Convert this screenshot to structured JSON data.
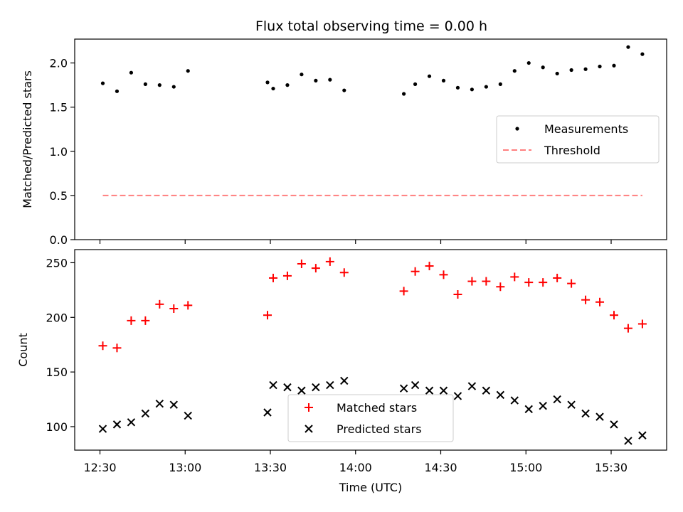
{
  "title": "Flux total observing time = 0.00 h",
  "colors": {
    "matched": "#ff0000",
    "predicted": "#000000",
    "measurement": "#000000",
    "threshold": "#ff7f7f"
  },
  "chart_data": [
    {
      "type": "scatter",
      "ylabel": "Matched/Predicted stars",
      "ylim": [
        0,
        2.27
      ],
      "yticks": [
        "0.0",
        "0.5",
        "1.0",
        "1.5",
        "2.0"
      ],
      "grid": false,
      "legend": "right",
      "series": [
        {
          "name": "Measurements",
          "x": [
            "12:31",
            "12:36",
            "12:41",
            "12:46",
            "12:51",
            "12:56",
            "13:01",
            "13:29",
            "13:31",
            "13:36",
            "13:41",
            "13:46",
            "13:51",
            "13:56",
            "14:17",
            "14:21",
            "14:26",
            "14:31",
            "14:36",
            "14:41",
            "14:46",
            "14:51",
            "14:56",
            "15:01",
            "15:06",
            "15:11",
            "15:16",
            "15:21",
            "15:26",
            "15:31",
            "15:36",
            "15:41"
          ],
          "y": [
            1.77,
            1.68,
            1.89,
            1.76,
            1.75,
            1.73,
            1.91,
            1.78,
            1.71,
            1.75,
            1.87,
            1.8,
            1.81,
            1.69,
            1.65,
            1.76,
            1.85,
            1.8,
            1.72,
            1.7,
            1.73,
            1.76,
            1.91,
            2.0,
            1.95,
            1.88,
            1.92,
            1.93,
            1.96,
            1.97,
            2.18,
            2.1
          ]
        },
        {
          "name": "Threshold",
          "x": [
            "12:31",
            "15:41"
          ],
          "y": [
            0.5,
            0.5
          ]
        }
      ]
    },
    {
      "type": "scatter",
      "xlabel": "Time (UTC)",
      "ylabel": "Count",
      "ylim": [
        78.5,
        262
      ],
      "yticks": [
        "100",
        "150",
        "200",
        "250"
      ],
      "xticks": [
        "12:30",
        "13:00",
        "13:30",
        "14:00",
        "14:30",
        "15:00",
        "15:30"
      ],
      "grid": false,
      "legend": "bottom-center",
      "series": [
        {
          "name": "Matched stars",
          "x": [
            "12:31",
            "12:36",
            "12:41",
            "12:46",
            "12:51",
            "12:56",
            "13:01",
            "13:29",
            "13:31",
            "13:36",
            "13:41",
            "13:46",
            "13:51",
            "13:56",
            "14:17",
            "14:21",
            "14:26",
            "14:31",
            "14:36",
            "14:41",
            "14:46",
            "14:51",
            "14:56",
            "15:01",
            "15:06",
            "15:11",
            "15:16",
            "15:21",
            "15:26",
            "15:31",
            "15:36",
            "15:41"
          ],
          "y": [
            174,
            172,
            197,
            197,
            212,
            208,
            211,
            202,
            236,
            238,
            249,
            245,
            251,
            241,
            224,
            242,
            247,
            239,
            221,
            233,
            233,
            228,
            237,
            232,
            232,
            236,
            231,
            216,
            214,
            202,
            190,
            194
          ]
        },
        {
          "name": "Predicted stars",
          "x": [
            "12:31",
            "12:36",
            "12:41",
            "12:46",
            "12:51",
            "12:56",
            "13:01",
            "13:29",
            "13:31",
            "13:36",
            "13:41",
            "13:46",
            "13:51",
            "13:56",
            "14:17",
            "14:21",
            "14:26",
            "14:31",
            "14:36",
            "14:41",
            "14:46",
            "14:51",
            "14:56",
            "15:01",
            "15:06",
            "15:11",
            "15:16",
            "15:21",
            "15:26",
            "15:31",
            "15:36",
            "15:41"
          ],
          "y": [
            98,
            102,
            104,
            112,
            121,
            120,
            110,
            113,
            138,
            136,
            133,
            136,
            138,
            142,
            135,
            138,
            133,
            133,
            128,
            137,
            133,
            129,
            124,
            116,
            119,
            125,
            120,
            112,
            109,
            102,
            87,
            92
          ]
        }
      ]
    }
  ]
}
